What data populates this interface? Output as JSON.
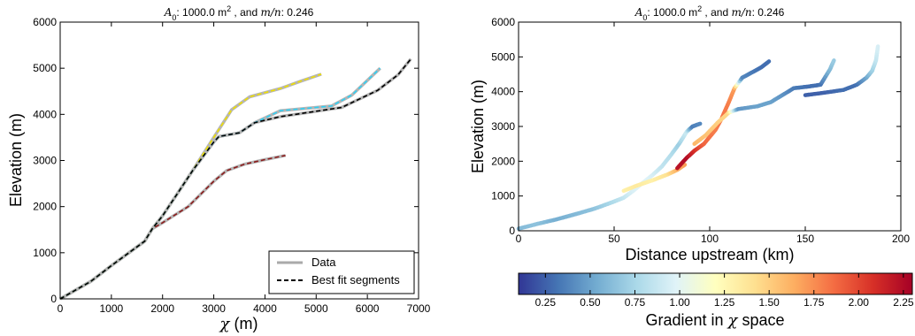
{
  "chart_data": [
    {
      "type": "line",
      "title_parts": {
        "sym": "A",
        "sub": "0",
        "mid": ": 1000.0 m",
        "sup": "2",
        "tail": " , and ",
        "mn": "m/n",
        "val": ": 0.246"
      },
      "xlabel_sym": "χ",
      "xlabel_unit": " (m)",
      "ylabel": "Elevation (m)",
      "xlim": [
        0,
        7000
      ],
      "ylim": [
        0,
        6000
      ],
      "xticks": [
        0,
        1000,
        2000,
        3000,
        4000,
        5000,
        6000,
        7000
      ],
      "yticks": [
        0,
        1000,
        2000,
        3000,
        4000,
        5000,
        6000
      ],
      "legend": {
        "position": "lower-right",
        "entries": [
          "Data",
          "Best fit segments"
        ]
      },
      "series": [
        {
          "color": "#8b1a1a",
          "points": [
            [
              0,
              0
            ],
            [
              600,
              380
            ],
            [
              1000,
              720
            ],
            [
              1650,
              1250
            ],
            [
              1800,
              1520
            ],
            [
              2000,
              1650
            ],
            [
              2500,
              2000
            ],
            [
              3000,
              2550
            ],
            [
              3250,
              2780
            ],
            [
              3600,
              2920
            ],
            [
              4000,
              3020
            ],
            [
              4400,
              3110
            ]
          ]
        },
        {
          "color": "#f0e000",
          "points": [
            [
              0,
              0
            ],
            [
              600,
              380
            ],
            [
              1000,
              720
            ],
            [
              1650,
              1250
            ],
            [
              1800,
              1520
            ],
            [
              2000,
              1800
            ],
            [
              2300,
              2300
            ],
            [
              2600,
              2800
            ],
            [
              3000,
              3500
            ],
            [
              3350,
              4100
            ],
            [
              3700,
              4380
            ],
            [
              4300,
              4560
            ],
            [
              4700,
              4720
            ],
            [
              5100,
              4870
            ]
          ]
        },
        {
          "color": "#2ed0f5",
          "points": [
            [
              0,
              0
            ],
            [
              600,
              380
            ],
            [
              1000,
              720
            ],
            [
              1650,
              1250
            ],
            [
              1800,
              1520
            ],
            [
              2000,
              1800
            ],
            [
              2300,
              2300
            ],
            [
              2600,
              2800
            ],
            [
              3000,
              3400
            ],
            [
              3100,
              3520
            ],
            [
              3500,
              3600
            ],
            [
              3800,
              3820
            ],
            [
              4300,
              4080
            ],
            [
              5300,
              4180
            ],
            [
              5700,
              4420
            ],
            [
              6250,
              5000
            ]
          ]
        },
        {
          "color": "#000000",
          "points": [
            [
              0,
              0
            ],
            [
              600,
              380
            ],
            [
              1000,
              720
            ],
            [
              1650,
              1250
            ],
            [
              1800,
              1520
            ],
            [
              2000,
              1800
            ],
            [
              2300,
              2300
            ],
            [
              2600,
              2800
            ],
            [
              3000,
              3400
            ],
            [
              3100,
              3520
            ],
            [
              3500,
              3600
            ],
            [
              3800,
              3820
            ],
            [
              4300,
              3950
            ],
            [
              5500,
              4150
            ],
            [
              6200,
              4520
            ],
            [
              6600,
              4860
            ],
            [
              6850,
              5200
            ]
          ]
        }
      ]
    },
    {
      "type": "scatter",
      "title_parts": {
        "sym": "A",
        "sub": "0",
        "mid": ": 1000.0 m",
        "sup": "2",
        "tail": " , and ",
        "mn": "m/n",
        "val": ": 0.246"
      },
      "xlabel": "Distance upstream (km)",
      "ylabel": "Elevation (m)",
      "xlim": [
        0,
        200
      ],
      "ylim": [
        0,
        6000
      ],
      "xticks": [
        0,
        50,
        100,
        150,
        200
      ],
      "yticks": [
        0,
        1000,
        2000,
        3000,
        4000,
        5000,
        6000
      ],
      "colorbar": {
        "label_prefix": "Gradient in ",
        "label_sym": "χ",
        "label_suffix": " space",
        "range": [
          0.1,
          2.3
        ],
        "ticks": [
          "0.25",
          "0.50",
          "0.75",
          "1.00",
          "1.25",
          "1.50",
          "1.75",
          "2.00",
          "2.25"
        ]
      },
      "paths": [
        {
          "points": [
            [
              0,
              60,
              0.6
            ],
            [
              10,
              200,
              0.65
            ],
            [
              20,
              330,
              0.55
            ],
            [
              30,
              480,
              0.6
            ],
            [
              40,
              640,
              0.65
            ],
            [
              48,
              800,
              0.75
            ],
            [
              55,
              950,
              0.85
            ],
            [
              60,
              1150,
              0.95
            ],
            [
              65,
              1380,
              1.0
            ],
            [
              70,
              1600,
              0.95
            ],
            [
              75,
              1850,
              0.85
            ],
            [
              80,
              2200,
              0.8
            ],
            [
              84,
              2500,
              0.7
            ],
            [
              88,
              2850,
              0.9
            ],
            [
              91,
              3000,
              0.35
            ],
            [
              95,
              3080,
              0.4
            ]
          ]
        },
        {
          "points": [
            [
              55,
              1150,
              1.3
            ],
            [
              62,
              1300,
              1.35
            ],
            [
              70,
              1450,
              1.3
            ],
            [
              78,
              1620,
              1.4
            ],
            [
              83,
              1750,
              1.6
            ],
            [
              87,
              1900,
              1.7
            ]
          ]
        },
        {
          "points": [
            [
              83,
              1800,
              2.2
            ],
            [
              88,
              2100,
              2.25
            ],
            [
              92,
              2300,
              2.1
            ],
            [
              97,
              2500,
              1.9
            ],
            [
              103,
              2900,
              1.8
            ],
            [
              106,
              3200,
              1.85
            ],
            [
              110,
              3700,
              1.8
            ],
            [
              113,
              4100,
              1.7
            ],
            [
              117,
              4400,
              0.4
            ],
            [
              122,
              4550,
              0.35
            ],
            [
              127,
              4700,
              0.3
            ],
            [
              131,
              4870,
              0.3
            ]
          ]
        },
        {
          "points": [
            [
              92,
              2500,
              1.6
            ],
            [
              98,
              2750,
              1.55
            ],
            [
              104,
              3100,
              1.5
            ],
            [
              110,
              3400,
              1.45
            ],
            [
              115,
              3500,
              0.45
            ],
            [
              125,
              3580,
              0.5
            ],
            [
              132,
              3700,
              0.5
            ],
            [
              138,
              3900,
              0.45
            ],
            [
              144,
              4100,
              0.35
            ],
            [
              152,
              4150,
              0.3
            ],
            [
              158,
              4200,
              0.3
            ],
            [
              163,
              4650,
              0.6
            ],
            [
              165,
              4900,
              0.7
            ]
          ]
        },
        {
          "points": [
            [
              150,
              3900,
              0.25
            ],
            [
              160,
              3970,
              0.25
            ],
            [
              170,
              4050,
              0.3
            ],
            [
              177,
              4200,
              0.3
            ],
            [
              182,
              4400,
              0.5
            ],
            [
              185,
              4600,
              0.7
            ],
            [
              187,
              4900,
              0.85
            ],
            [
              188,
              5300,
              0.95
            ]
          ]
        }
      ]
    }
  ]
}
